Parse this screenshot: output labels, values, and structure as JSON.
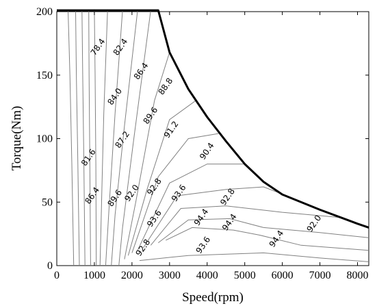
{
  "chart_data": {
    "type": "contour",
    "xlabel": "Speed(rpm)",
    "ylabel": "Torque(Nm)",
    "xlim": [
      0,
      8300
    ],
    "ylim": [
      0,
      200
    ],
    "xticks": [
      0,
      1000,
      2000,
      3000,
      4000,
      5000,
      6000,
      7000,
      8000
    ],
    "yticks": [
      0,
      50,
      100,
      150,
      200
    ],
    "envelope": [
      {
        "x": 0,
        "y": 201
      },
      {
        "x": 2700,
        "y": 201
      },
      {
        "x": 3000,
        "y": 168
      },
      {
        "x": 3500,
        "y": 139
      },
      {
        "x": 4000,
        "y": 117
      },
      {
        "x": 4500,
        "y": 98
      },
      {
        "x": 5000,
        "y": 80
      },
      {
        "x": 5500,
        "y": 66
      },
      {
        "x": 6000,
        "y": 56
      },
      {
        "x": 7000,
        "y": 44
      },
      {
        "x": 8000,
        "y": 33
      },
      {
        "x": 8300,
        "y": 30
      }
    ],
    "contour_labels": [
      {
        "text": "78.4",
        "x": 1100,
        "y": 172
      },
      {
        "text": "82.4",
        "x": 1700,
        "y": 172
      },
      {
        "text": "86.4",
        "x": 2250,
        "y": 153
      },
      {
        "text": "84.0",
        "x": 1550,
        "y": 133
      },
      {
        "text": "88.8",
        "x": 2900,
        "y": 141
      },
      {
        "text": "89.6",
        "x": 2500,
        "y": 118
      },
      {
        "text": "91.2",
        "x": 3050,
        "y": 107
      },
      {
        "text": "87.2",
        "x": 1750,
        "y": 99
      },
      {
        "text": "90.4",
        "x": 4000,
        "y": 90
      },
      {
        "text": "81.6",
        "x": 850,
        "y": 85
      },
      {
        "text": "86.4",
        "x": 950,
        "y": 55
      },
      {
        "text": "89.6",
        "x": 1550,
        "y": 53
      },
      {
        "text": "92.0",
        "x": 2000,
        "y": 57
      },
      {
        "text": "92.8",
        "x": 2600,
        "y": 62
      },
      {
        "text": "93.6",
        "x": 3250,
        "y": 57
      },
      {
        "text": "92.8",
        "x": 4550,
        "y": 54
      },
      {
        "text": "93.6",
        "x": 2600,
        "y": 37
      },
      {
        "text": "94.4",
        "x": 3850,
        "y": 38
      },
      {
        "text": "94.4",
        "x": 4600,
        "y": 34
      },
      {
        "text": "92.0",
        "x": 6850,
        "y": 33
      },
      {
        "text": "94.4",
        "x": 5850,
        "y": 21
      },
      {
        "text": "92.8",
        "x": 2300,
        "y": 14
      },
      {
        "text": "93.6",
        "x": 3900,
        "y": 16
      }
    ],
    "contour_lines": [
      [
        [
          450,
          0
        ],
        [
          400,
          80
        ],
        [
          350,
          150
        ],
        [
          300,
          201
        ]
      ],
      [
        [
          600,
          0
        ],
        [
          560,
          80
        ],
        [
          520,
          150
        ],
        [
          500,
          201
        ]
      ],
      [
        [
          750,
          0
        ],
        [
          720,
          80
        ],
        [
          690,
          150
        ],
        [
          670,
          201
        ]
      ],
      [
        [
          900,
          0
        ],
        [
          880,
          80
        ],
        [
          860,
          150
        ],
        [
          850,
          201
        ]
      ],
      [
        [
          1050,
          0
        ],
        [
          1040,
          80
        ],
        [
          1020,
          150
        ],
        [
          1000,
          201
        ]
      ],
      [
        [
          1150,
          0
        ],
        [
          1200,
          60
        ],
        [
          1250,
          120
        ],
        [
          1350,
          201
        ]
      ],
      [
        [
          1300,
          0
        ],
        [
          1400,
          50
        ],
        [
          1550,
          120
        ],
        [
          1750,
          201
        ]
      ],
      [
        [
          1450,
          0
        ],
        [
          1550,
          40
        ],
        [
          1800,
          110
        ],
        [
          2150,
          201
        ]
      ],
      [
        [
          1650,
          0
        ],
        [
          1750,
          30
        ],
        [
          2050,
          100
        ],
        [
          2500,
          201
        ]
      ],
      [
        [
          1800,
          5
        ],
        [
          2100,
          50
        ],
        [
          2600,
          130
        ],
        [
          3000,
          168
        ]
      ],
      [
        [
          1900,
          8
        ],
        [
          2400,
          60
        ],
        [
          3000,
          115
        ],
        [
          3700,
          130
        ]
      ],
      [
        [
          2000,
          10
        ],
        [
          2700,
          70
        ],
        [
          3500,
          100
        ],
        [
          4300,
          104
        ]
      ],
      [
        [
          2150,
          12
        ],
        [
          3000,
          65
        ],
        [
          4000,
          80
        ],
        [
          5000,
          80
        ]
      ],
      [
        [
          2300,
          14
        ],
        [
          3200,
          55
        ],
        [
          4500,
          60
        ],
        [
          5500,
          62
        ],
        [
          6200,
          54
        ]
      ],
      [
        [
          2500,
          16
        ],
        [
          3300,
          45
        ],
        [
          4500,
          47
        ],
        [
          6000,
          42
        ],
        [
          7500,
          38
        ],
        [
          8300,
          30
        ]
      ],
      [
        [
          2700,
          18
        ],
        [
          3500,
          36
        ],
        [
          4600,
          37
        ],
        [
          5500,
          30
        ],
        [
          7000,
          26
        ],
        [
          8300,
          22
        ]
      ],
      [
        [
          2900,
          20
        ],
        [
          3600,
          30
        ],
        [
          4700,
          28
        ],
        [
          5400,
          24
        ],
        [
          6500,
          16
        ],
        [
          8300,
          12
        ]
      ],
      [
        [
          2200,
          4
        ],
        [
          3500,
          8
        ],
        [
          5500,
          10
        ],
        [
          7000,
          6
        ],
        [
          8300,
          3
        ]
      ]
    ]
  }
}
